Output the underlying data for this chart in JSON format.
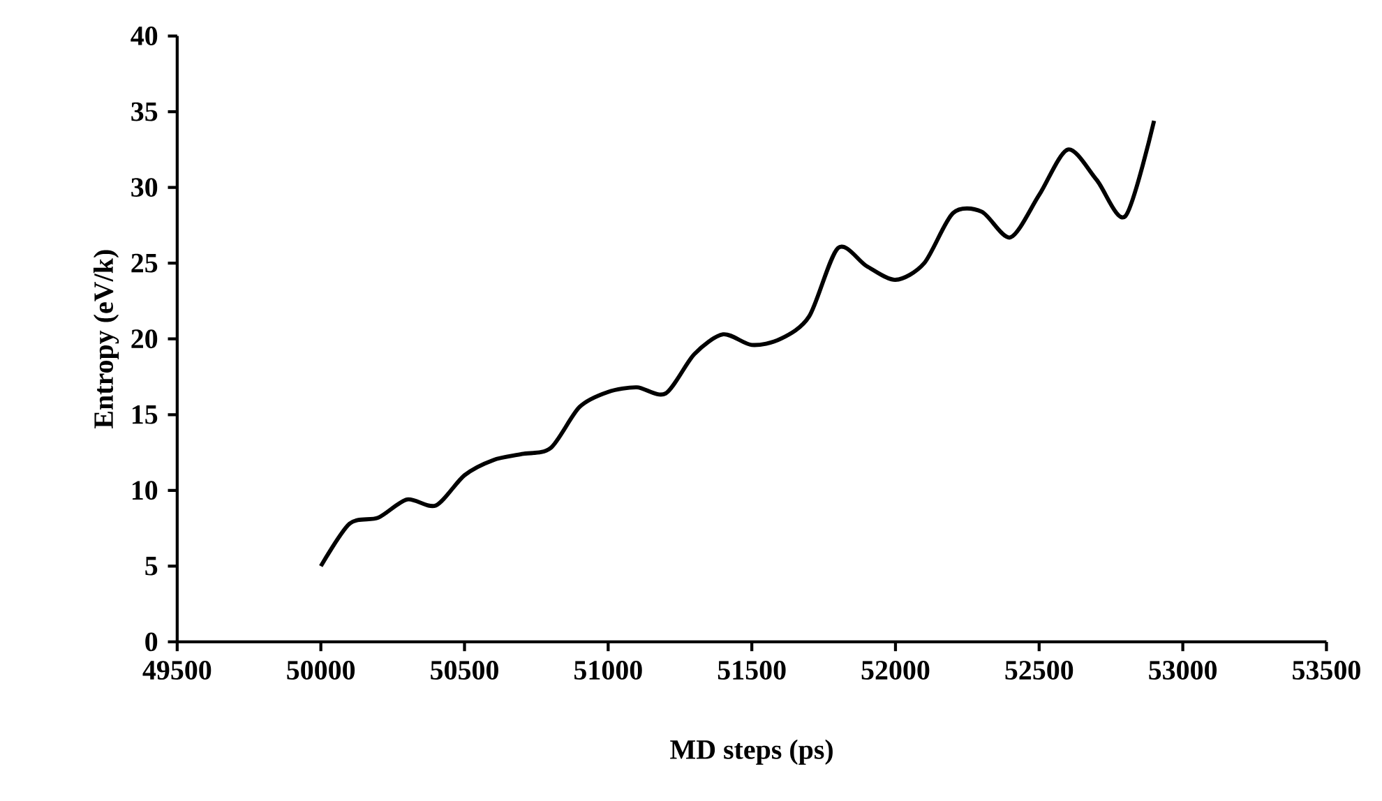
{
  "chart_data": {
    "type": "line",
    "xlabel": "MD steps (ps)",
    "ylabel": "Entropy (eV/k)",
    "x": [
      50000,
      50100,
      50200,
      50300,
      50400,
      50500,
      50600,
      50700,
      50800,
      50900,
      51000,
      51100,
      51200,
      51300,
      51400,
      51500,
      51600,
      51700,
      51800,
      51900,
      52000,
      52100,
      52200,
      52300,
      52400,
      52500,
      52600,
      52700,
      52800,
      52900
    ],
    "series": [
      {
        "color": "#000000",
        "values": [
          5,
          7.8,
          8.2,
          9.4,
          9,
          11,
          12,
          12.4,
          12.8,
          15.5,
          16.5,
          16.8,
          16.4,
          19,
          20.3,
          19.6,
          20,
          21.5,
          26,
          24.8,
          23.9,
          25,
          28.3,
          28.4,
          26.7,
          29.5,
          32.5,
          30.5,
          28.1,
          34.4
        ]
      }
    ],
    "xlim": [
      49500,
      53500
    ],
    "xticks": [
      49500,
      50000,
      50500,
      51000,
      51500,
      52000,
      52500,
      53000,
      53500
    ],
    "ylim": [
      0,
      40
    ],
    "yticks": [
      0,
      5,
      10,
      15,
      20,
      25,
      30,
      35,
      40
    ],
    "grid": false,
    "marker": "none",
    "line_style": "solid"
  }
}
